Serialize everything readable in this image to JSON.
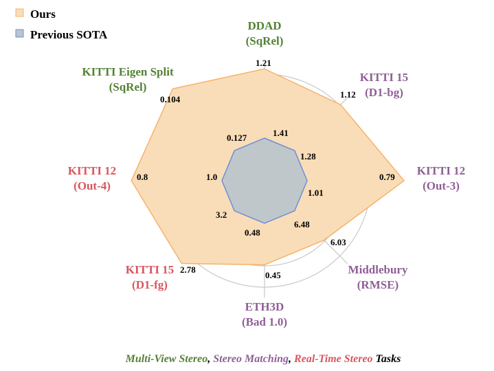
{
  "chart_data": {
    "type": "radar",
    "title": "",
    "legend": {
      "placement": "top-left",
      "entries": [
        {
          "name": "Ours",
          "color": "#f9ddb8",
          "stroke": "#f6b26b"
        },
        {
          "name": "Previous SOTA",
          "color": "#b9c4cc",
          "stroke": "#6d8fd6"
        }
      ]
    },
    "axes": [
      {
        "name": "DDAD",
        "metric": "(SqRel)",
        "group": "mvs"
      },
      {
        "name": "KITTI 15",
        "metric": "(D1-bg)",
        "group": "stereo"
      },
      {
        "name": "KITTI 12",
        "metric": "(Out-3)",
        "group": "stereo"
      },
      {
        "name": "Middlebury",
        "metric": "(RMSE)",
        "group": "stereo"
      },
      {
        "name": "ETH3D",
        "metric": "(Bad 1.0)",
        "group": "stereo"
      },
      {
        "name": "KITTI 15",
        "metric": "(D1-fg)",
        "group": "realtime"
      },
      {
        "name": "KITTI 12",
        "metric": "(Out-4)",
        "group": "realtime"
      },
      {
        "name": "KITTI Eigen Split",
        "metric": "(SqRel)",
        "group": "mvs"
      }
    ],
    "series": [
      {
        "name": "Ours",
        "values": [
          "1.21",
          "1.12",
          "0.79",
          "6.03",
          "0.45",
          "2.78",
          "0.8",
          "0.104"
        ],
        "radius_scaled": [
          1.05,
          1.01,
          1.31,
          0.79,
          0.79,
          1.1,
          1.25,
          1.22
        ]
      },
      {
        "name": "Previous SOTA",
        "values": [
          "1.41",
          "1.28",
          "1.01",
          "6.48",
          "0.48",
          "3.2",
          "1.0",
          "0.127"
        ],
        "radius_scaled": [
          0.4,
          0.4,
          0.4,
          0.4,
          0.4,
          0.4,
          0.4,
          0.4
        ]
      }
    ],
    "group_colors": {
      "mvs": "#538135",
      "stereo": "#8e5f95",
      "realtime": "#d9555e"
    },
    "footer": [
      {
        "text": "Multi-View Stereo",
        "group": "mvs"
      },
      {
        "text": ", ",
        "group": "plain"
      },
      {
        "text": "Stereo Matching",
        "group": "stereo"
      },
      {
        "text": ", ",
        "group": "plain"
      },
      {
        "text": "Real-Time Stereo",
        "group": "realtime"
      },
      {
        "text": " Tasks",
        "group": "plain"
      }
    ]
  }
}
